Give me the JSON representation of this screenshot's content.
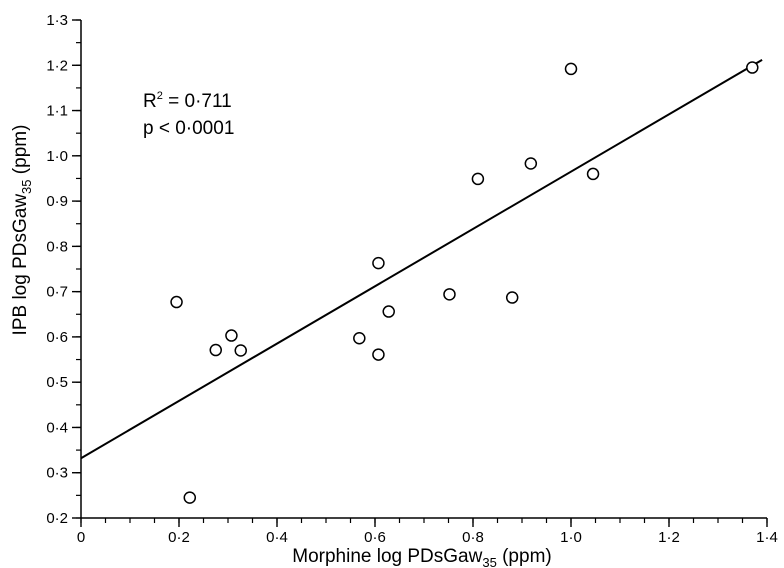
{
  "chart_data": {
    "type": "scatter",
    "xlabel": "Morphine log PDsGaw",
    "xlabel_sub": "35",
    "xlabel_unit": " (ppm)",
    "ylabel": "IPB log PDsGaw",
    "ylabel_sub": "35",
    "ylabel_unit": " (ppm)",
    "xlim": [
      0,
      1.4
    ],
    "ylim": [
      0.2,
      1.3
    ],
    "x_ticks": [
      0,
      0.2,
      0.4,
      0.6,
      0.8,
      1.0,
      1.2,
      1.4
    ],
    "x_tick_labels": [
      "0",
      "0·2",
      "0·4",
      "0·6",
      "0·8",
      "1·0",
      "1·2",
      "1·4"
    ],
    "y_ticks": [
      0.2,
      0.3,
      0.4,
      0.5,
      0.6,
      0.7,
      0.8,
      0.9,
      1.0,
      1.1,
      1.2,
      1.3
    ],
    "y_tick_labels": [
      "0·2",
      "0·3",
      "0·4",
      "0·5",
      "0·6",
      "0·7",
      "0·8",
      "0·9",
      "1·0",
      "1·1",
      "1·2",
      "1·3"
    ],
    "x_minor_step": 0.05,
    "y_minor_step": 0.05,
    "grid": false,
    "points": [
      {
        "x": 0.195,
        "y": 0.677
      },
      {
        "x": 0.222,
        "y": 0.245
      },
      {
        "x": 0.275,
        "y": 0.571
      },
      {
        "x": 0.307,
        "y": 0.603
      },
      {
        "x": 0.326,
        "y": 0.57
      },
      {
        "x": 0.568,
        "y": 0.597
      },
      {
        "x": 0.607,
        "y": 0.763
      },
      {
        "x": 0.607,
        "y": 0.561
      },
      {
        "x": 0.628,
        "y": 0.656
      },
      {
        "x": 0.752,
        "y": 0.694
      },
      {
        "x": 0.81,
        "y": 0.949
      },
      {
        "x": 0.88,
        "y": 0.687
      },
      {
        "x": 0.918,
        "y": 0.983
      },
      {
        "x": 1.0,
        "y": 1.192
      },
      {
        "x": 1.045,
        "y": 0.96
      },
      {
        "x": 1.37,
        "y": 1.195
      }
    ],
    "fit_line": {
      "x": [
        0,
        1.39
      ],
      "y": [
        0.332,
        1.212
      ]
    },
    "annotations": {
      "r2_prefix": "R",
      "r2_sup": "2",
      "r2_value": " = 0·711",
      "p_value": "p < 0·0001"
    },
    "colors": {
      "line": "#000000",
      "marker_edge": "#000000",
      "marker_fill": "#ffffff"
    }
  }
}
